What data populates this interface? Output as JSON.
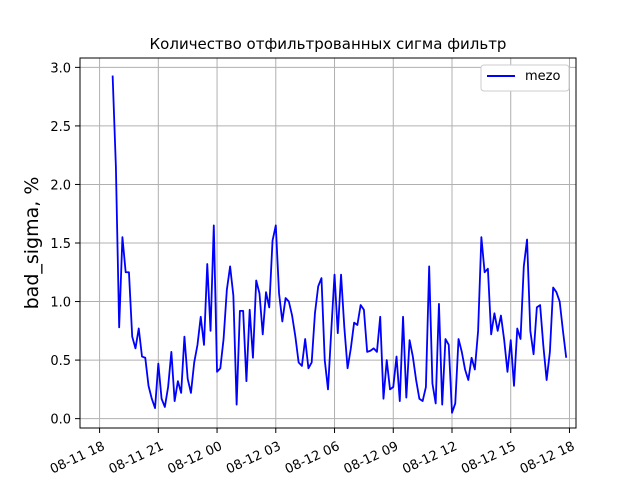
{
  "chart_data": {
    "type": "line",
    "title": "Количество отфильтрованных сигма фильтр",
    "xlabel": "",
    "ylabel": "bad_sigma, %",
    "xlim": [
      "08-11 17:00",
      "08-12 18:20"
    ],
    "ylim": [
      -0.08,
      3.08
    ],
    "grid": true,
    "legend_position": "top-right",
    "line_color": "#0000ff",
    "x_ticks": [
      "08-11 18",
      "08-11 21",
      "08-12 00",
      "08-12 03",
      "08-12 06",
      "08-12 09",
      "08-12 12",
      "08-12 15",
      "08-12 18"
    ],
    "y_ticks": [
      "0.0",
      "0.5",
      "1.0",
      "1.5",
      "2.0",
      "2.5",
      "3.0"
    ],
    "series": [
      {
        "name": "mezo",
        "x_start": "08-11 18:40",
        "x_step_minutes": 10,
        "values": [
          2.93,
          2.15,
          0.78,
          1.55,
          1.25,
          1.25,
          0.7,
          0.6,
          0.77,
          0.53,
          0.52,
          0.28,
          0.17,
          0.09,
          0.47,
          0.17,
          0.1,
          0.27,
          0.57,
          0.15,
          0.32,
          0.22,
          0.7,
          0.34,
          0.22,
          0.48,
          0.63,
          0.87,
          0.63,
          1.32,
          0.75,
          1.65,
          0.4,
          0.43,
          0.68,
          1.1,
          1.3,
          1.05,
          0.12,
          0.92,
          0.92,
          0.32,
          0.93,
          0.52,
          1.18,
          1.07,
          0.72,
          1.08,
          0.95,
          1.52,
          1.65,
          1.07,
          0.83,
          1.03,
          1.0,
          0.88,
          0.7,
          0.48,
          0.45,
          0.68,
          0.43,
          0.48,
          0.9,
          1.13,
          1.2,
          0.5,
          0.25,
          0.75,
          1.23,
          0.73,
          1.23,
          0.78,
          0.43,
          0.6,
          0.82,
          0.8,
          0.97,
          0.93,
          0.57,
          0.58,
          0.6,
          0.57,
          0.87,
          0.17,
          0.5,
          0.25,
          0.27,
          0.53,
          0.15,
          0.87,
          0.18,
          0.67,
          0.53,
          0.33,
          0.17,
          0.15,
          0.27,
          1.3,
          0.3,
          0.13,
          0.98,
          0.12,
          0.68,
          0.63,
          0.05,
          0.13,
          0.68,
          0.57,
          0.42,
          0.33,
          0.52,
          0.42,
          0.75,
          1.55,
          1.25,
          1.28,
          0.72,
          0.9,
          0.75,
          0.88,
          0.67,
          0.4,
          0.67,
          0.28,
          0.77,
          0.68,
          1.3,
          1.53,
          0.75,
          0.55,
          0.95,
          0.97,
          0.62,
          0.33,
          0.57,
          1.12,
          1.08,
          1.0,
          0.75,
          0.52
        ]
      }
    ]
  }
}
